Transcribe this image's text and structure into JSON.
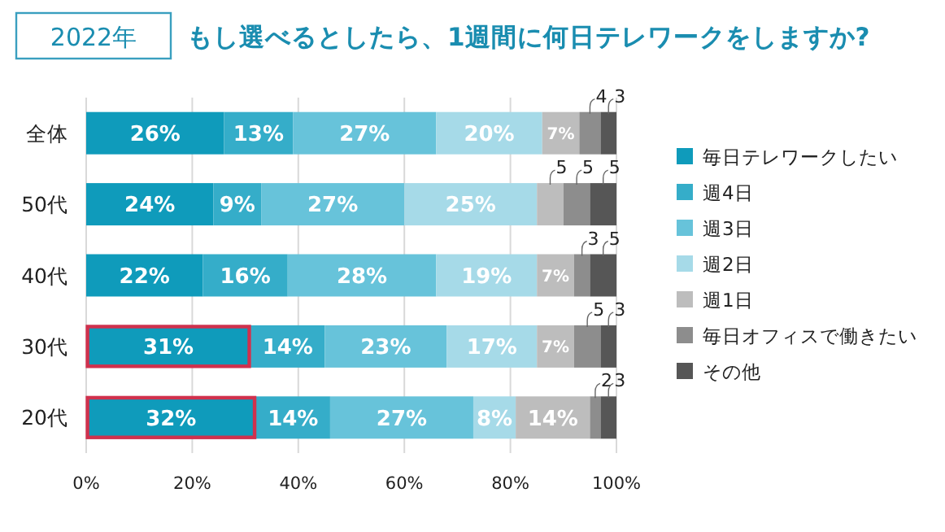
{
  "chart_data": {
    "type": "bar",
    "orientation": "horizontal",
    "stacked": true,
    "title": "もし選べるとしたら、1週間に何日テレワークをしますか?",
    "subtitle": "2022年",
    "categories": [
      "全体",
      "50代",
      "40代",
      "30代",
      "20代"
    ],
    "series": [
      {
        "name": "毎日テレワークしたい",
        "color": "#0f9bbb",
        "values": [
          26,
          24,
          22,
          31,
          32
        ],
        "value_labels": [
          "26%",
          "24%",
          "22%",
          "31%",
          "32%"
        ]
      },
      {
        "name": "週4日",
        "color": "#35adc9",
        "values": [
          13,
          9,
          16,
          14,
          14
        ],
        "value_labels": [
          "13%",
          "9%",
          "16%",
          "14%",
          "14%"
        ]
      },
      {
        "name": "週3日",
        "color": "#67c3da",
        "values": [
          27,
          27,
          28,
          23,
          27
        ],
        "value_labels": [
          "27%",
          "27%",
          "28%",
          "23%",
          "27%"
        ]
      },
      {
        "name": "週2日",
        "color": "#a6dae8",
        "values": [
          20,
          25,
          19,
          17,
          8
        ],
        "value_labels": [
          "20%",
          "25%",
          "19%",
          "17%",
          "8%"
        ]
      },
      {
        "name": "週1日",
        "color": "#bdbdbd",
        "values": [
          7,
          5,
          7,
          7,
          14
        ],
        "value_labels": [
          "7%",
          "5",
          "7%",
          "7%",
          "14%"
        ]
      },
      {
        "name": "毎日オフィスで働きたい",
        "color": "#8d8d8d",
        "values": [
          4,
          5,
          3,
          5,
          2
        ],
        "value_labels": [
          "4",
          "5",
          "3",
          "5",
          "2"
        ]
      },
      {
        "name": "その他",
        "color": "#565656",
        "values": [
          3,
          5,
          5,
          3,
          3
        ],
        "value_labels": [
          "3",
          "5",
          "5",
          "3",
          "3"
        ]
      }
    ],
    "xlim": [
      0,
      100
    ],
    "xticks": [
      {
        "value": 0,
        "label": "0%"
      },
      {
        "value": 20,
        "label": "20%"
      },
      {
        "value": 40,
        "label": "40%"
      },
      {
        "value": 60,
        "label": "60%"
      },
      {
        "value": 80,
        "label": "80%"
      },
      {
        "value": 100,
        "label": "100%"
      }
    ],
    "grid": "x",
    "legend": "right"
  }
}
